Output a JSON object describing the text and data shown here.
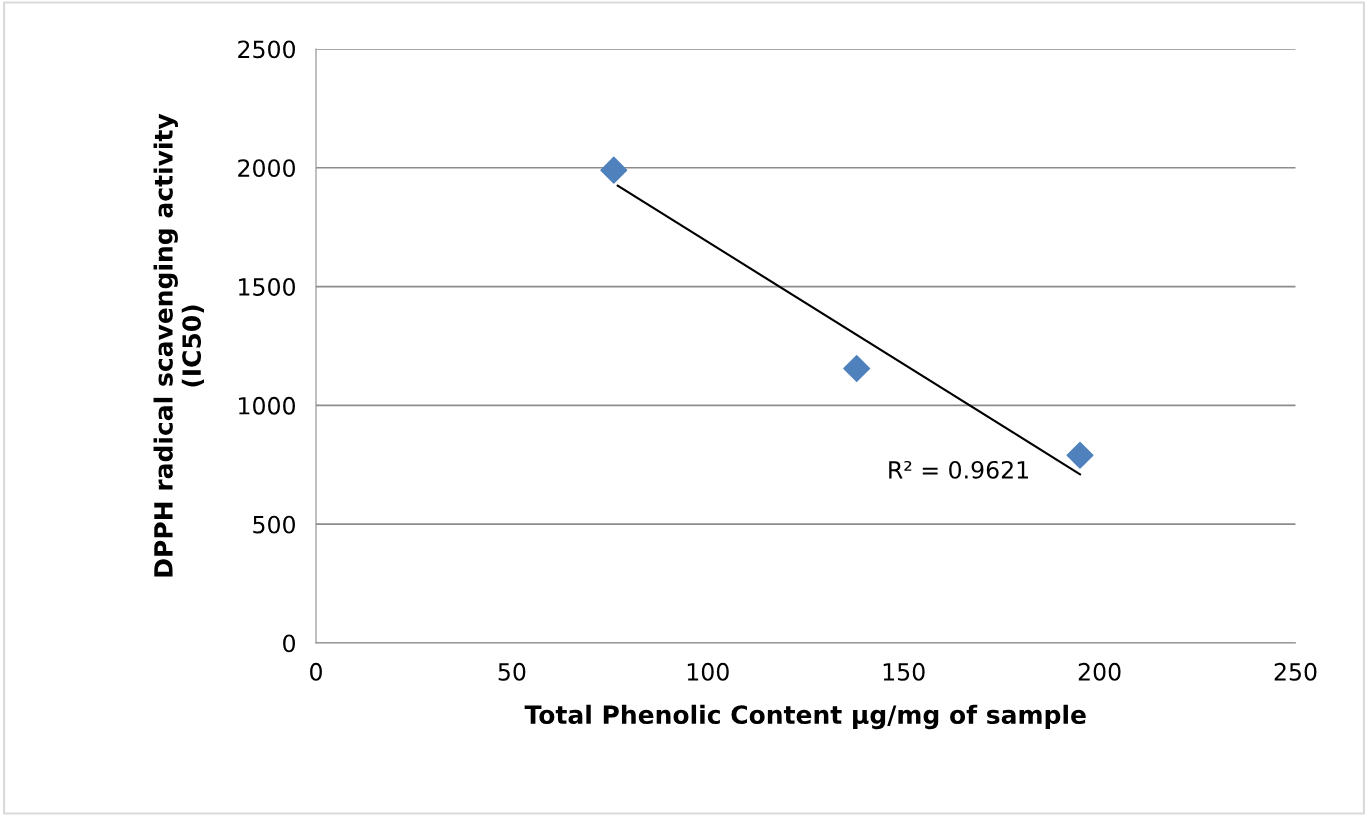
{
  "chart_data": {
    "type": "scatter",
    "xlabel": "Total Phenolic Content µg/mg of sample",
    "ylabel": "DPPH radical scavenging activity\n(IC50)",
    "x": [
      76,
      138,
      195
    ],
    "series": [
      {
        "color": "#4f81bd",
        "marker": "diamond",
        "values": [
          1990,
          1155,
          790
        ]
      },
      {
        "type": "line",
        "color": "#000000",
        "marker": "none",
        "line_style": "solid",
        "x": [
          77,
          195
        ],
        "values": [
          1925,
          710
        ]
      }
    ],
    "xlim": [
      0,
      250
    ],
    "xticks": [
      0,
      50,
      100,
      150,
      200,
      250
    ],
    "ylim": [
      0,
      2500
    ],
    "yticks": [
      0,
      500,
      1000,
      1500,
      2000,
      2500
    ],
    "grid": "y",
    "legend": false,
    "annotations": [
      "R² = 0.9621"
    ]
  }
}
